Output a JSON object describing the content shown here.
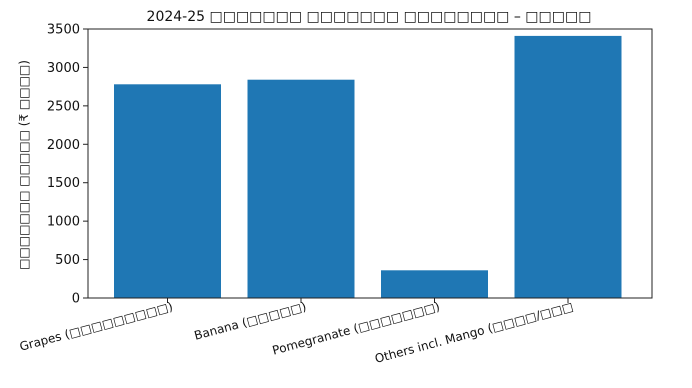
{
  "chart_data": {
    "type": "bar",
    "title": "2024-25 □□□□□□□ □□□□□□□ □□□□□□□□ – □□□□□",
    "xlabel": "",
    "ylabel": "□□□□□□□ □□□□□ (₹ □□□□)",
    "categories": [
      "Grapes (□□□□□□□□□)",
      "Banana (□□□□□)",
      "Pomegranate (□□□□□□□)",
      "Others incl. Mango (□□□□/□□□"
    ],
    "values": [
      2780,
      2840,
      360,
      3410
    ],
    "ylim": [
      0,
      3500
    ],
    "yticks": [
      0,
      500,
      1000,
      1500,
      2000,
      2500,
      3000,
      3500
    ],
    "grid": false,
    "legend": false,
    "bar_color": "#1f77b4"
  }
}
